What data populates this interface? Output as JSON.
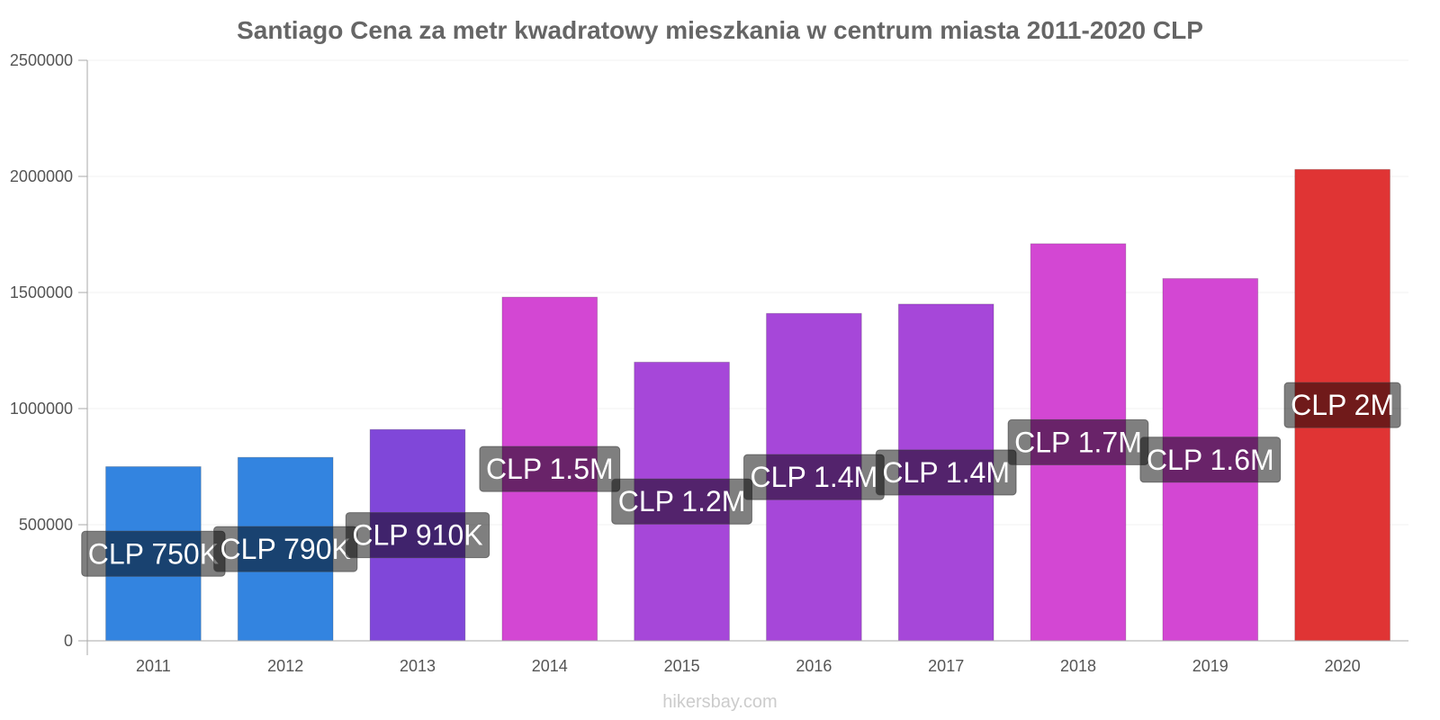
{
  "chart_data": {
    "type": "bar",
    "title": "Santiago Cena za metr kwadratowy mieszkania w centrum miasta 2011-2020 CLP",
    "categories": [
      "2011",
      "2012",
      "2013",
      "2014",
      "2015",
      "2016",
      "2017",
      "2018",
      "2019",
      "2020"
    ],
    "values": [
      750000,
      790000,
      910000,
      1480000,
      1200000,
      1410000,
      1450000,
      1710000,
      1560000,
      2030000
    ],
    "data_labels": [
      "CLP 750K",
      "CLP 790K",
      "CLP 910K",
      "CLP 1.5M",
      "CLP 1.2M",
      "CLP 1.4M",
      "CLP 1.4M",
      "CLP 1.7M",
      "CLP 1.6M",
      "CLP 2M"
    ],
    "bar_colors": [
      "#3384e0",
      "#3384e0",
      "#8047d9",
      "#d347d3",
      "#a647d9",
      "#a647d9",
      "#a647d9",
      "#d347d3",
      "#d347d3",
      "#e03434"
    ],
    "y_ticks": [
      "0",
      "500000",
      "1000000",
      "1500000",
      "2000000",
      "2500000"
    ],
    "ylim": [
      0,
      2500000
    ],
    "xlabel": "",
    "ylabel": "",
    "grid": true,
    "legend": "none"
  },
  "source": "hikersbay.com"
}
